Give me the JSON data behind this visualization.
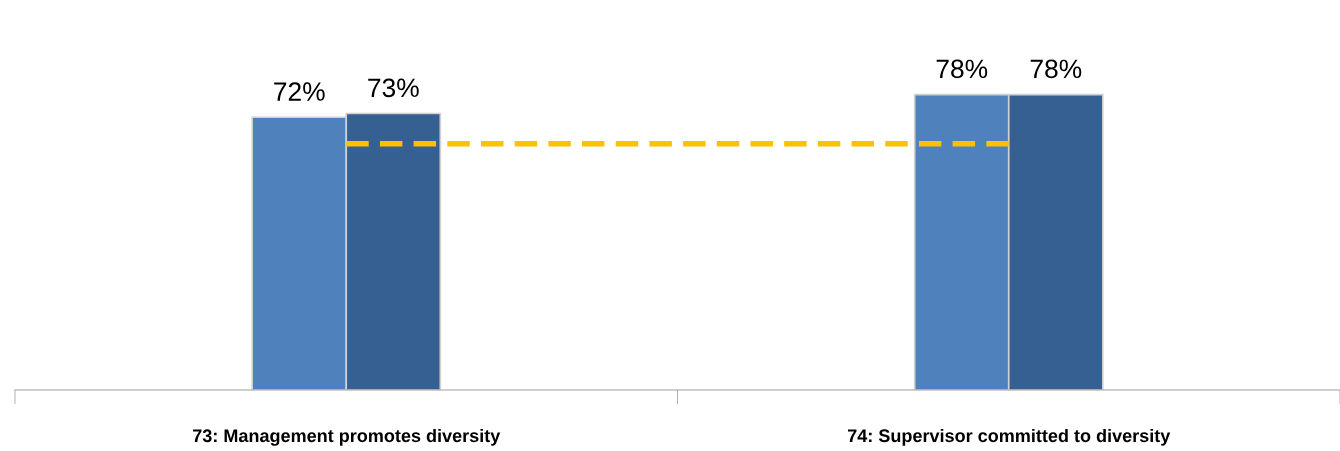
{
  "chart_data": {
    "type": "bar",
    "categories": [
      "73: Management promotes diversity",
      "74: Supervisor committed to diversity"
    ],
    "relative": false,
    "tick_labels": "x",
    "series": [
      {
        "color": "#4f81bd",
        "values": [
          72,
          78
        ],
        "value_labels": [
          "72%",
          "78%"
        ]
      },
      {
        "color": "#366092",
        "values": [
          73,
          78
        ],
        "value_labels": [
          "73%",
          "78%"
        ]
      },
      {
        "type": "line",
        "color": "#ffc000",
        "line_style": "dashed",
        "marker": "none",
        "values": [
          65,
          65
        ]
      }
    ]
  }
}
